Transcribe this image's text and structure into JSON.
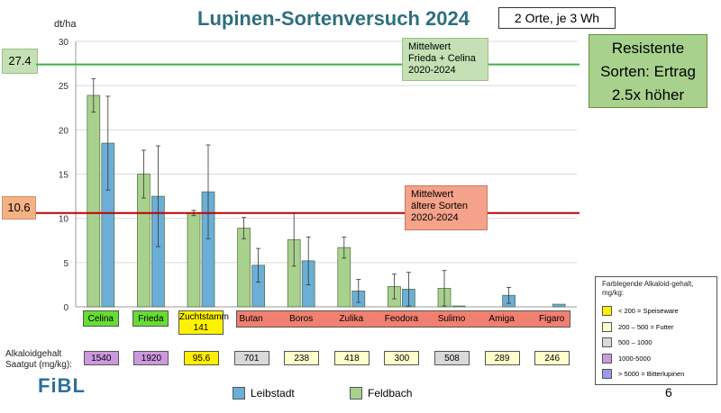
{
  "title": "Lupinen-Sortenversuch 2024",
  "info_box": "2 Orte, je 3 Wh",
  "resistant_note": [
    "Resistente",
    "Sorten: Ertrag",
    "2.5x höher"
  ],
  "mean_resistant": {
    "value_label": "27.4",
    "lines": [
      "Mittelwert",
      "Frieda + Celina",
      "2020-2024"
    ],
    "color": "#3cb043"
  },
  "mean_old": {
    "value_label": "10.6",
    "lines": [
      "Mittelwert",
      "ältere Sorten",
      "2020-2024"
    ],
    "color": "#c00000"
  },
  "alkaloid_label": [
    "Alkaloidgehalt",
    "Saatgut (mg/kg):"
  ],
  "alkaloid_values": [
    {
      "value": "1540",
      "color": "#cc99dd"
    },
    {
      "value": "1920",
      "color": "#cc99dd"
    },
    {
      "value": "95.6",
      "color": "#ffee00"
    },
    {
      "value": "701",
      "color": "#d9d9d9"
    },
    {
      "value": "238",
      "color": "#ffffcc"
    },
    {
      "value": "418",
      "color": "#ffffcc"
    },
    {
      "value": "300",
      "color": "#ffffcc"
    },
    {
      "value": "508",
      "color": "#d9d9d9"
    },
    {
      "value": "289",
      "color": "#ffffcc"
    },
    {
      "value": "246",
      "color": "#ffffcc"
    }
  ],
  "category_labels": [
    {
      "label": "Celina",
      "style": "green"
    },
    {
      "label": "Frieda",
      "style": "green"
    },
    {
      "label": "Zuchtstamm 141",
      "style": "yellow"
    },
    {
      "label": "Butan",
      "style": "red"
    },
    {
      "label": "Boros",
      "style": "red"
    },
    {
      "label": "Zulika",
      "style": "red"
    },
    {
      "label": "Feodora",
      "style": "red"
    },
    {
      "label": "Sulimo",
      "style": "red"
    },
    {
      "label": "Amiga",
      "style": "red"
    },
    {
      "label": "Figaro",
      "style": "red"
    }
  ],
  "legend": [
    {
      "label": "Leibstadt",
      "color": "#6baed6"
    },
    {
      "label": "Feldbach",
      "color": "#a9d18e"
    }
  ],
  "color_key": {
    "title": "Farblegende Alkaloid-gehalt, mg/kg:",
    "items": [
      {
        "label": "< 200 = Speiseware",
        "color": "#ffee00"
      },
      {
        "label": "200 – 500 = Futter",
        "color": "#ffffcc"
      },
      {
        "label": "500 – 1000",
        "color": "#d9d9d9"
      },
      {
        "label": "1000-5000",
        "color": "#cc99dd"
      },
      {
        "label": "> 5000 = Bitterlupinen",
        "color": "#9999ee"
      }
    ]
  },
  "logo": "FiBL",
  "page_number": "6",
  "chart_data": {
    "type": "bar",
    "title": "Lupinen-Sortenversuch 2024",
    "ylabel": "dt/ha",
    "ylim": [
      0,
      30
    ],
    "yticks": [
      0,
      5,
      10,
      15,
      20,
      25,
      30
    ],
    "grid": true,
    "categories": [
      "Celina",
      "Frieda",
      "Zuchtstamm 141",
      "Butan",
      "Boros",
      "Zulika",
      "Feodora",
      "Sulimo",
      "Amiga",
      "Figaro"
    ],
    "series": [
      {
        "name": "Feldbach",
        "color": "#a9d18e",
        "values": [
          23.9,
          15.0,
          10.6,
          8.9,
          7.6,
          6.7,
          2.3,
          2.1,
          null,
          null
        ],
        "errors": [
          1.9,
          2.7,
          0.3,
          1.2,
          3.0,
          1.2,
          1.4,
          2.0,
          null,
          null
        ]
      },
      {
        "name": "Leibstadt",
        "color": "#6baed6",
        "values": [
          18.5,
          12.5,
          13.0,
          4.7,
          5.2,
          1.8,
          2.0,
          0.1,
          1.3,
          0.3
        ],
        "errors": [
          5.3,
          5.7,
          5.3,
          1.9,
          2.7,
          1.3,
          1.9,
          null,
          0.9,
          null
        ]
      }
    ],
    "reference_lines": [
      {
        "label": "Mittelwert Frieda + Celina 2020-2024",
        "value": 27.4
      },
      {
        "label": "Mittelwert ältere Sorten 2020-2024",
        "value": 10.6
      }
    ],
    "legend_position": "bottom"
  }
}
